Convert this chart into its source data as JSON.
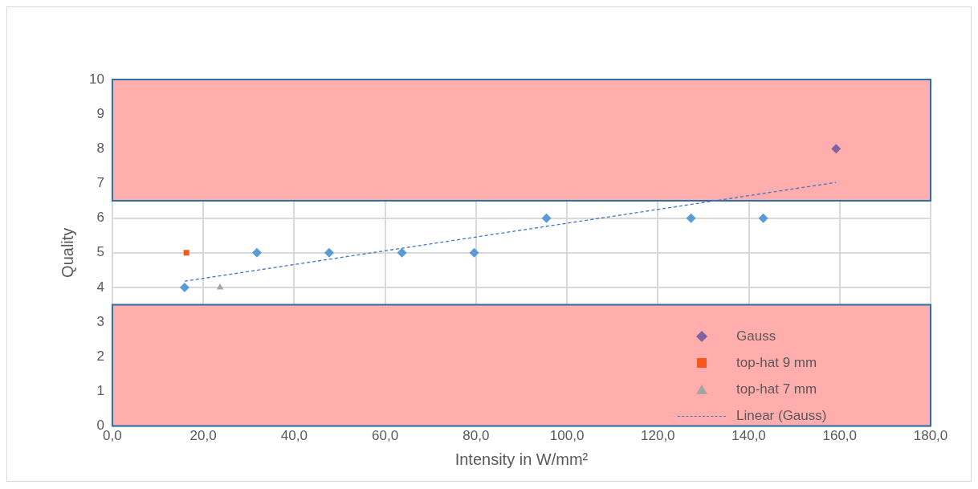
{
  "chart_data": {
    "type": "scatter",
    "xlabel": "Intensity in W/mm²",
    "ylabel": "Quality",
    "xlim": [
      0,
      180
    ],
    "xticks": [
      {
        "value": 0,
        "label": "0,0"
      },
      {
        "value": 20,
        "label": "20,0"
      },
      {
        "value": 40,
        "label": "40,0"
      },
      {
        "value": 60,
        "label": "60,0"
      },
      {
        "value": 80,
        "label": "80,0"
      },
      {
        "value": 100,
        "label": "100,0"
      },
      {
        "value": 120,
        "label": "120,0"
      },
      {
        "value": 140,
        "label": "140,0"
      },
      {
        "value": 160,
        "label": "160,0"
      },
      {
        "value": 180,
        "label": "180,0"
      }
    ],
    "ylim": [
      0,
      10
    ],
    "yticks": [
      0,
      1,
      2,
      3,
      4,
      5,
      6,
      7,
      8,
      9,
      10
    ],
    "grid": true,
    "legend": "bottom right",
    "series": [
      {
        "name": "Gauss",
        "marker": "diamond",
        "color": "#8064a2",
        "colors": [
          "#5b9bd5",
          "#5b9bd5",
          "#5b9bd5",
          "#5b9bd5",
          "#5b9bd5",
          "#5b9bd5",
          "#5b9bd5",
          "#5b9bd5",
          "#8064a2"
        ],
        "x": [
          15.9,
          31.8,
          47.7,
          63.7,
          79.6,
          95.5,
          127.3,
          143.2,
          159.2
        ],
        "values": [
          4,
          5,
          5,
          5,
          5,
          6,
          6,
          6,
          8
        ]
      },
      {
        "name": "top-hat 9 mm",
        "marker": "square",
        "color": "#f4581c",
        "x": [
          16.3
        ],
        "values": [
          5
        ]
      },
      {
        "name": "top-hat 7 mm",
        "marker": "triangle",
        "color": "#a5a5a5",
        "x": [
          23.7
        ],
        "values": [
          4
        ]
      },
      {
        "name": "Linear (Gauss)",
        "type": "line",
        "marker": "none",
        "line_style": "dashed",
        "color": "#4472c4",
        "x": [
          15.9,
          159.2
        ],
        "values": [
          4.18,
          7.03
        ]
      }
    ],
    "bands": [
      {
        "axis": "y",
        "from": 6.5,
        "to": 10,
        "color": "#ffadad"
      },
      {
        "axis": "y",
        "from": 0,
        "to": 3.5,
        "color": "#ffadad"
      }
    ]
  }
}
